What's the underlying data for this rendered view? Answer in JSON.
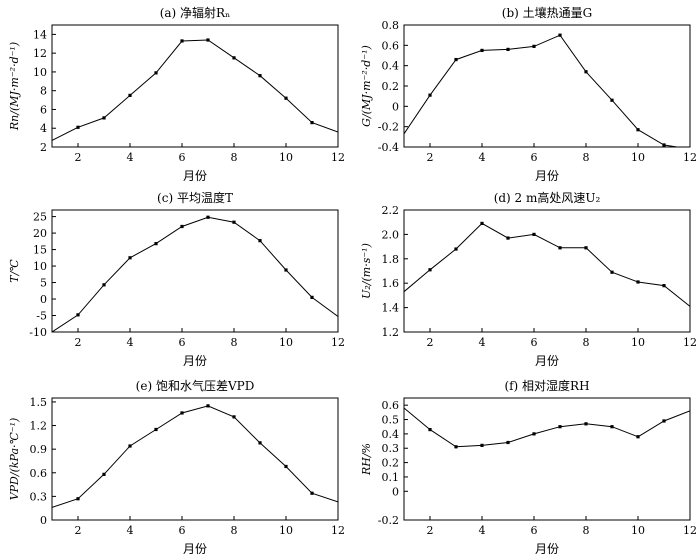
{
  "chart_data": [
    {
      "type": "line",
      "title": "(a) 净辐射Rₙ",
      "xlabel": "月份",
      "ylabel": "Rn/(MJ·m⁻²·d⁻¹)",
      "xlim": [
        1,
        12
      ],
      "ylim": [
        2,
        15
      ],
      "xticks": [
        2,
        4,
        6,
        8,
        10,
        12
      ],
      "yticks": [
        2,
        4,
        6,
        8,
        10,
        12,
        14
      ],
      "ytick_labels": [
        "2",
        "4",
        "6",
        "8",
        "10",
        "12",
        "14"
      ],
      "x": [
        1,
        2,
        3,
        4,
        5,
        6,
        7,
        8,
        9,
        10,
        11,
        12
      ],
      "y": [
        2.7,
        4.1,
        5.1,
        7.5,
        9.9,
        13.3,
        13.4,
        11.5,
        9.6,
        7.2,
        4.6,
        3.6
      ],
      "grid": false
    },
    {
      "type": "line",
      "title": "(b) 土壤热通量G",
      "xlabel": "月份",
      "ylabel": "G/(MJ·m⁻²·d⁻¹)",
      "xlim": [
        1,
        12
      ],
      "ylim": [
        -0.4,
        0.8
      ],
      "xticks": [
        2,
        4,
        6,
        8,
        10,
        12
      ],
      "yticks": [
        -0.4,
        -0.2,
        0,
        0.2,
        0.4,
        0.6,
        0.8
      ],
      "ytick_labels": [
        "-0.4",
        "-0.2",
        "0",
        "0.2",
        "0.4",
        "0.6",
        "0.8"
      ],
      "x": [
        1,
        2,
        3,
        4,
        5,
        6,
        7,
        8,
        9,
        10,
        11,
        12
      ],
      "y": [
        -0.27,
        0.11,
        0.46,
        0.55,
        0.56,
        0.59,
        0.7,
        0.34,
        0.06,
        -0.23,
        -0.38,
        -0.42
      ],
      "grid": false
    },
    {
      "type": "line",
      "title": "(c) 平均温度T",
      "xlabel": "月份",
      "ylabel": "T/℃",
      "xlim": [
        1,
        12
      ],
      "ylim": [
        -10,
        27
      ],
      "xticks": [
        2,
        4,
        6,
        8,
        10,
        12
      ],
      "yticks": [
        -10,
        -5,
        0,
        5,
        10,
        15,
        20,
        25
      ],
      "ytick_labels": [
        "-10",
        "-5",
        "0",
        "5",
        "10",
        "15",
        "20",
        "25"
      ],
      "x": [
        1,
        2,
        3,
        4,
        5,
        6,
        7,
        8,
        9,
        10,
        11,
        12
      ],
      "y": [
        -10,
        -4.8,
        4.3,
        12.5,
        16.8,
        22,
        24.8,
        23.3,
        17.7,
        8.8,
        0.5,
        -5.3
      ],
      "grid": false
    },
    {
      "type": "line",
      "title": "(d) 2 m高处风速U₂",
      "xlabel": "月份",
      "ylabel": "U₂/(m·s⁻¹)",
      "xlim": [
        1,
        12
      ],
      "ylim": [
        1.2,
        2.2
      ],
      "xticks": [
        2,
        4,
        6,
        8,
        10,
        12
      ],
      "yticks": [
        1.2,
        1.4,
        1.6,
        1.8,
        2.0,
        2.2
      ],
      "ytick_labels": [
        "1.2",
        "1.4",
        "1.6",
        "1.8",
        "2.0",
        "2.2"
      ],
      "x": [
        1,
        2,
        3,
        4,
        5,
        6,
        7,
        8,
        9,
        10,
        11,
        12
      ],
      "y": [
        1.53,
        1.71,
        1.88,
        2.09,
        1.97,
        2.0,
        1.89,
        1.89,
        1.69,
        1.61,
        1.58,
        1.41
      ],
      "grid": false
    },
    {
      "type": "line",
      "title": "(e) 饱和水气压差VPD",
      "xlabel": "月份",
      "ylabel": "VPD/(kPa·℃⁻¹)",
      "xlim": [
        1,
        12
      ],
      "ylim": [
        0,
        1.55
      ],
      "xticks": [
        2,
        4,
        6,
        8,
        10,
        12
      ],
      "yticks": [
        0,
        0.3,
        0.6,
        0.9,
        1.2,
        1.5
      ],
      "ytick_labels": [
        "0",
        "0.3",
        "0.6",
        "0.9",
        "1.2",
        "1.5"
      ],
      "x": [
        1,
        2,
        3,
        4,
        5,
        6,
        7,
        8,
        9,
        10,
        11,
        12
      ],
      "y": [
        0.16,
        0.27,
        0.58,
        0.94,
        1.15,
        1.36,
        1.45,
        1.31,
        0.98,
        0.68,
        0.34,
        0.23
      ],
      "grid": false
    },
    {
      "type": "line",
      "title": "(f) 相对湿度RH",
      "xlabel": "月份",
      "ylabel": "RH/%",
      "xlim": [
        1,
        12
      ],
      "ylim": [
        -0.2,
        0.65
      ],
      "xticks": [
        2,
        4,
        6,
        8,
        10,
        12
      ],
      "yticks": [
        -0.2,
        0,
        0.1,
        0.2,
        0.3,
        0.4,
        0.5,
        0.6
      ],
      "ytick_labels": [
        "-0.2",
        "0",
        "0.1",
        "0.2",
        "0.3",
        "0.4",
        "0.5",
        "0.6"
      ],
      "x": [
        1,
        2,
        3,
        4,
        5,
        6,
        7,
        8,
        9,
        10,
        11,
        12
      ],
      "y": [
        0.58,
        0.43,
        0.31,
        0.32,
        0.34,
        0.4,
        0.45,
        0.47,
        0.45,
        0.38,
        0.49,
        0.56
      ],
      "grid": false
    }
  ]
}
